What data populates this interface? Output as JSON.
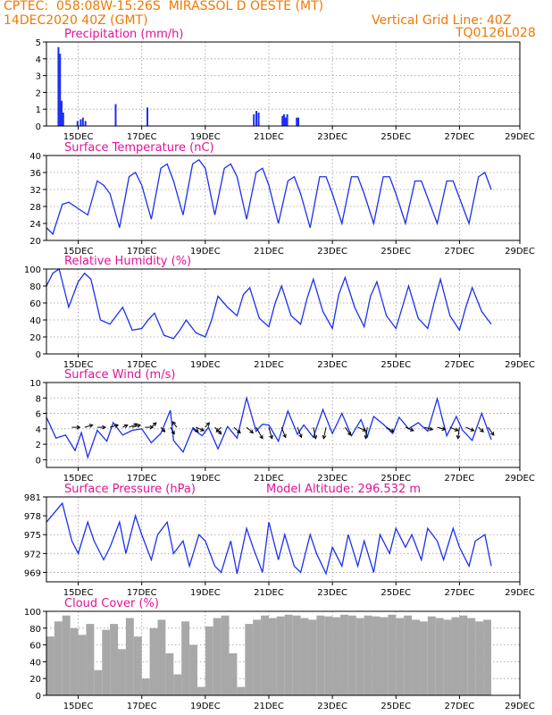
{
  "header": {
    "line1_left": "CPTEC:  058:08W-15:26S  MIRASSOL D OESTE (MT)",
    "line2_left": "14DEC2020 40Z (GMT)",
    "line2_right": "Vertical Grid Line: 40Z",
    "line3_right": "TQ0126L028",
    "model_altitude": "Model Altitude: 296.532 m"
  },
  "colors": {
    "header": "#f07800",
    "title": "#e0139a",
    "series": "#1d2ff0",
    "cloud": "#a8a8a8",
    "grid": "#9a9a9a",
    "arrow": "#000000"
  },
  "x_ticks": [
    "15DEC",
    "17DEC",
    "19DEC",
    "21DEC",
    "23DEC",
    "25DEC",
    "27DEC",
    "29DEC"
  ],
  "chart_data": [
    {
      "type": "bar",
      "title": "Precipitation (mm/h)",
      "ylim": [
        0,
        5
      ],
      "yticks": [
        "0",
        "1",
        "2",
        "3",
        "4",
        "5"
      ],
      "x_days": [
        0.35,
        0.4,
        0.45,
        0.5,
        0.95,
        1.05,
        1.12,
        1.2,
        2.15,
        3.15,
        6.5,
        6.58,
        6.65,
        7.4,
        7.45,
        7.5,
        7.55,
        7.85,
        7.9
      ],
      "values": [
        4.7,
        4.3,
        1.5,
        0.8,
        0.3,
        0.4,
        0.5,
        0.3,
        1.3,
        1.1,
        0.7,
        0.9,
        0.8,
        0.6,
        0.7,
        0.5,
        0.7,
        0.5,
        0.5
      ]
    },
    {
      "type": "line",
      "title": "Surface Temperature (nC)",
      "ylim": [
        20,
        40
      ],
      "yticks": [
        "20",
        "24",
        "28",
        "32",
        "36",
        "40"
      ],
      "x_days": [
        0,
        0.2,
        0.5,
        0.7,
        1.0,
        1.3,
        1.6,
        1.8,
        2.0,
        2.3,
        2.6,
        2.8,
        3.0,
        3.3,
        3.6,
        3.8,
        4.0,
        4.3,
        4.6,
        4.8,
        5.0,
        5.3,
        5.6,
        5.8,
        6.0,
        6.3,
        6.6,
        6.8,
        7.0,
        7.3,
        7.6,
        7.8,
        8.0,
        8.3,
        8.6,
        8.8,
        9.0,
        9.3,
        9.6,
        9.8,
        10.0,
        10.3,
        10.6,
        10.8,
        11.0,
        11.3,
        11.6,
        11.8,
        12.0,
        12.3,
        12.6,
        12.8,
        13.0,
        13.3,
        13.6,
        13.8,
        14.0
      ],
      "values": [
        23,
        21.5,
        28.5,
        29,
        27.5,
        26,
        34,
        33,
        31,
        23,
        35,
        36,
        33,
        25,
        37,
        38,
        34,
        26,
        38,
        39,
        37,
        26,
        37,
        38,
        35,
        25,
        36,
        37,
        33,
        24,
        34,
        35,
        31,
        23,
        35,
        35,
        31,
        24,
        35,
        35,
        31,
        24,
        35,
        35,
        31,
        24,
        34,
        34,
        30,
        24,
        34,
        34,
        30,
        24,
        35,
        36,
        32
      ]
    },
    {
      "type": "line",
      "title": "Relative Humidity (%)",
      "ylim": [
        0,
        100
      ],
      "yticks": [
        "0",
        "20",
        "40",
        "60",
        "80",
        "100"
      ],
      "x_days": [
        0,
        0.2,
        0.4,
        0.7,
        1.0,
        1.2,
        1.4,
        1.7,
        2.0,
        2.2,
        2.4,
        2.7,
        3.0,
        3.2,
        3.4,
        3.7,
        4.0,
        4.2,
        4.4,
        4.7,
        5.0,
        5.2,
        5.4,
        5.7,
        6.0,
        6.2,
        6.4,
        6.7,
        7.0,
        7.2,
        7.4,
        7.7,
        8.0,
        8.2,
        8.4,
        8.7,
        9.0,
        9.2,
        9.4,
        9.7,
        10.0,
        10.2,
        10.4,
        10.7,
        11.0,
        11.2,
        11.4,
        11.7,
        12.0,
        12.2,
        12.4,
        12.7,
        13.0,
        13.2,
        13.4,
        13.7,
        14.0
      ],
      "values": [
        80,
        95,
        100,
        55,
        85,
        95,
        88,
        40,
        35,
        45,
        55,
        28,
        30,
        40,
        48,
        22,
        18,
        28,
        40,
        25,
        20,
        40,
        68,
        55,
        45,
        70,
        78,
        42,
        32,
        60,
        80,
        45,
        35,
        65,
        88,
        50,
        30,
        70,
        90,
        55,
        32,
        68,
        85,
        45,
        30,
        55,
        80,
        42,
        30,
        60,
        88,
        45,
        28,
        55,
        78,
        50,
        35
      ]
    },
    {
      "type": "line",
      "title": "Surface Wind (m/s)",
      "ylim": [
        -1,
        10
      ],
      "yticks": [
        "0",
        "2",
        "4",
        "6",
        "8",
        "10"
      ],
      "x_days": [
        0,
        0.3,
        0.6,
        0.9,
        1.1,
        1.3,
        1.6,
        1.9,
        2.1,
        2.4,
        2.7,
        3.0,
        3.3,
        3.6,
        3.9,
        4.0,
        4.3,
        4.6,
        4.9,
        5.1,
        5.4,
        5.7,
        6.0,
        6.3,
        6.6,
        6.8,
        7.0,
        7.3,
        7.6,
        7.9,
        8.1,
        8.4,
        8.7,
        9.0,
        9.3,
        9.6,
        9.9,
        10.1,
        10.3,
        10.6,
        10.9,
        11.1,
        11.4,
        11.7,
        12.0,
        12.3,
        12.6,
        12.9,
        13.1,
        13.4,
        13.7,
        14.0
      ],
      "values": [
        5.5,
        2.8,
        3.2,
        1.2,
        3.5,
        0.3,
        3.8,
        2.4,
        4.8,
        3.2,
        3.8,
        4.0,
        2.2,
        3.4,
        6.4,
        2.5,
        1.0,
        4.0,
        3.1,
        4.2,
        1.4,
        4.3,
        2.8,
        8.0,
        3.7,
        4.6,
        4.5,
        2.4,
        6.3,
        3.3,
        4.5,
        2.9,
        6.5,
        3.4,
        6.0,
        3.1,
        5.2,
        3.0,
        5.6,
        4.6,
        3.4,
        5.5,
        4.0,
        4.8,
        3.7,
        7.9,
        3.1,
        5.6,
        3.8,
        2.5,
        6.0,
        2.6
      ]
    },
    {
      "type": "line",
      "title": "Surface Pressure (hPa)",
      "ylim": [
        967.5,
        981
      ],
      "yticks": [
        "969",
        "972",
        "975",
        "978",
        "981"
      ],
      "x_days": [
        0,
        0.5,
        0.8,
        1.0,
        1.3,
        1.5,
        1.8,
        2.0,
        2.3,
        2.5,
        2.8,
        3.0,
        3.3,
        3.5,
        3.8,
        4.0,
        4.3,
        4.5,
        4.8,
        5.0,
        5.3,
        5.5,
        5.8,
        6.0,
        6.3,
        6.5,
        6.8,
        7.0,
        7.3,
        7.5,
        7.8,
        8.0,
        8.3,
        8.5,
        8.8,
        9.0,
        9.3,
        9.5,
        9.8,
        10.0,
        10.3,
        10.5,
        10.8,
        11.0,
        11.3,
        11.5,
        11.8,
        12.0,
        12.3,
        12.5,
        12.8,
        13.0,
        13.3,
        13.5,
        13.8,
        14.0
      ],
      "values": [
        977,
        980,
        974,
        972,
        977,
        974,
        971,
        973,
        977,
        972,
        978,
        975,
        971,
        975,
        977,
        972,
        974,
        970,
        975,
        974,
        970,
        969,
        974,
        968.8,
        976,
        973,
        969,
        977,
        971,
        975,
        970,
        969,
        975,
        972,
        968.8,
        973,
        970,
        975,
        970,
        974,
        969,
        975,
        972,
        976,
        973,
        975,
        971,
        976,
        974,
        971,
        976,
        973,
        970,
        974,
        975,
        970
      ]
    },
    {
      "type": "area",
      "title": "Cloud Cover (%)",
      "ylim": [
        0,
        100
      ],
      "yticks": [
        "0",
        "20",
        "40",
        "60",
        "80",
        "100"
      ],
      "x_days": [
        0,
        0.25,
        0.5,
        0.75,
        1.0,
        1.25,
        1.5,
        1.75,
        2.0,
        2.25,
        2.5,
        2.75,
        3.0,
        3.25,
        3.5,
        3.75,
        4.0,
        4.25,
        4.5,
        4.75,
        5.0,
        5.25,
        5.5,
        5.75,
        6.0,
        6.25,
        6.5,
        6.75,
        7.0,
        7.25,
        7.5,
        7.75,
        8.0,
        8.25,
        8.5,
        8.75,
        9.0,
        9.25,
        9.5,
        9.75,
        10.0,
        10.25,
        10.5,
        10.75,
        11.0,
        11.25,
        11.5,
        11.75,
        12.0,
        12.25,
        12.5,
        12.75,
        13.0,
        13.25,
        13.5,
        13.75,
        14.0
      ],
      "values": [
        70,
        88,
        95,
        80,
        72,
        85,
        30,
        78,
        85,
        55,
        92,
        70,
        20,
        80,
        90,
        50,
        25,
        88,
        60,
        10,
        82,
        92,
        95,
        50,
        10,
        85,
        90,
        95,
        92,
        94,
        96,
        95,
        92,
        90,
        95,
        94,
        93,
        96,
        95,
        92,
        95,
        94,
        93,
        96,
        92,
        95,
        90,
        88,
        94,
        92,
        90,
        93,
        95,
        92,
        88,
        90,
        94
      ]
    }
  ],
  "wind_arrows": {
    "x_days": [
      0.8,
      1.2,
      1.6,
      2.0,
      2.4,
      2.6,
      2.7,
      3.1,
      3.3,
      3.6,
      3.9,
      4.1,
      4.6,
      4.7,
      5.0,
      5.3,
      5.5,
      5.9,
      6.3,
      6.6,
      7.0,
      7.4,
      7.9,
      8.4,
      8.8,
      9.4,
      9.8,
      10.1,
      10.7,
      11.3,
      11.9,
      12.3,
      12.7,
      13.0,
      13.2,
      13.6,
      13.9
    ],
    "dx": [
      1,
      1,
      1,
      1,
      0.6,
      1,
      1,
      1,
      0.6,
      0.5,
      0.5,
      -0.5,
      0.7,
      1,
      0.5,
      0.8,
      -0.6,
      0.8,
      0.8,
      0.8,
      0.4,
      0.5,
      0.5,
      0.3,
      -0.3,
      0.7,
      1,
      -0.2,
      0.9,
      1,
      1,
      1,
      1,
      -0.2,
      1,
      0.6,
      0.7
    ],
    "dy": [
      0,
      0.2,
      0,
      0.2,
      0.2,
      0.3,
      0.2,
      0,
      0.4,
      -0.4,
      -0.6,
      0.5,
      -0.4,
      -0.3,
      0.4,
      -0.6,
      -0.4,
      -0.5,
      -0.5,
      -1,
      -1,
      -0.9,
      -0.9,
      -1,
      -1,
      -0.7,
      -0.3,
      -1,
      -0.4,
      -0.3,
      -0.2,
      -0.2,
      -0.3,
      -1,
      -0.3,
      -0.4,
      -0.7
    ]
  }
}
